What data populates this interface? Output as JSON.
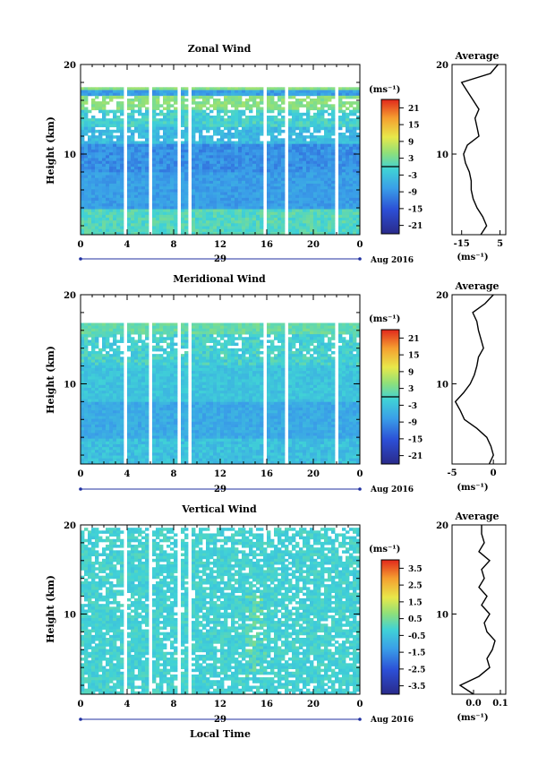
{
  "chart_data": [
    {
      "type": "heatmap",
      "title": "Zonal Wind",
      "ylabel": "Height (km)",
      "unit": "(ms⁻¹)",
      "x_ticks": [
        "0",
        "4",
        "8",
        "12",
        "16",
        "20",
        "0"
      ],
      "y_ticks": [
        "20",
        "10"
      ],
      "xlim": [
        0,
        24
      ],
      "ylim": [
        1,
        20
      ],
      "date_day": "29",
      "date_label": "Aug 2016",
      "colorbar_ticks": [
        "21",
        "15",
        "9",
        "3",
        "-3",
        "-9",
        "-15",
        "-21"
      ],
      "colorbar_range": [
        -24,
        24
      ],
      "average": {
        "title": "Average",
        "x_ticks": [
          "-15",
          "5"
        ],
        "xlim": [
          -20,
          8
        ],
        "xunit": "(ms⁻¹)",
        "y_ticks": [
          "20",
          "10"
        ],
        "height_km": [
          1,
          2,
          3,
          4,
          5,
          6,
          7,
          8,
          9,
          10,
          11,
          12,
          13,
          14,
          15,
          16,
          17,
          18,
          19,
          20
        ],
        "values": [
          -5,
          -2,
          -4,
          -7,
          -9,
          -10,
          -10,
          -11,
          -13,
          -14,
          -12,
          -6,
          -7,
          -8,
          -6,
          -9,
          -12,
          -15,
          0,
          4
        ]
      }
    },
    {
      "type": "heatmap",
      "title": "Meridional Wind",
      "ylabel": "Height (km)",
      "unit": "(ms⁻¹)",
      "x_ticks": [
        "0",
        "4",
        "8",
        "12",
        "16",
        "20",
        "0"
      ],
      "y_ticks": [
        "20",
        "10"
      ],
      "xlim": [
        0,
        24
      ],
      "ylim": [
        1,
        20
      ],
      "date_day": "29",
      "date_label": "Aug 2016",
      "colorbar_ticks": [
        "21",
        "15",
        "9",
        "3",
        "-3",
        "-9",
        "-15",
        "-21"
      ],
      "colorbar_range": [
        -24,
        24
      ],
      "average": {
        "title": "Average",
        "x_ticks": [
          "-5",
          "0"
        ],
        "xlim": [
          -5,
          1.5
        ],
        "xunit": "(ms⁻¹)",
        "y_ticks": [
          "20",
          "10"
        ],
        "height_km": [
          1,
          2,
          3,
          4,
          5,
          6,
          7,
          8,
          9,
          10,
          11,
          12,
          13,
          14,
          15,
          16,
          17,
          18,
          19,
          20
        ],
        "values": [
          -0.5,
          0,
          -0.3,
          -0.8,
          -2,
          -3.5,
          -4,
          -4.6,
          -3.6,
          -2.8,
          -2.3,
          -2,
          -1.8,
          -1.2,
          -1.5,
          -1.8,
          -2,
          -2.5,
          -1,
          0
        ]
      }
    },
    {
      "type": "heatmap",
      "title": "Vertical Wind",
      "ylabel": "Height (km)",
      "xlabel": "Local Time",
      "unit": "(ms⁻¹)",
      "x_ticks": [
        "0",
        "4",
        "8",
        "12",
        "16",
        "20",
        "0"
      ],
      "y_ticks": [
        "20",
        "10"
      ],
      "xlim": [
        0,
        24
      ],
      "ylim": [
        1,
        20
      ],
      "date_day": "29",
      "date_label": "Aug 2016",
      "colorbar_ticks": [
        "3.5",
        "2.5",
        "1.5",
        "0.5",
        "-0.5",
        "-1.5",
        "-2.5",
        "-3.5"
      ],
      "colorbar_range": [
        -4,
        4
      ],
      "average": {
        "title": "Average",
        "x_ticks": [
          "0.0",
          "0.1"
        ],
        "xlim": [
          -0.08,
          0.12
        ],
        "xunit": "(ms⁻¹)",
        "y_ticks": [
          "20",
          "10"
        ],
        "height_km": [
          1,
          2,
          3,
          4,
          5,
          6,
          7,
          8,
          9,
          10,
          11,
          12,
          13,
          14,
          15,
          16,
          17,
          18,
          19,
          20
        ],
        "values": [
          0.0,
          -0.05,
          0.02,
          0.06,
          0.05,
          0.07,
          0.08,
          0.05,
          0.04,
          0.06,
          0.03,
          0.05,
          0.02,
          0.04,
          0.03,
          0.06,
          0.02,
          0.04,
          0.03,
          0.03
        ]
      }
    }
  ]
}
